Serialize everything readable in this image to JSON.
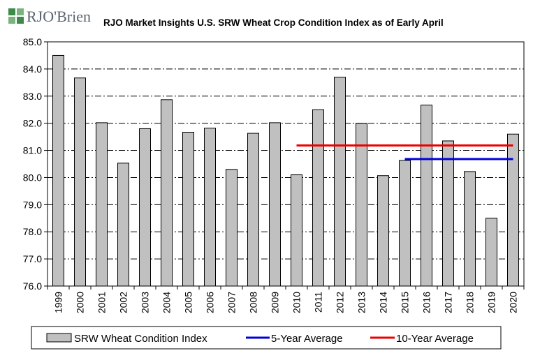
{
  "logo": {
    "text": "RJO'Brien",
    "mark_color": "#3d8a4a",
    "icon": "rjo-logo-icon"
  },
  "chart_data": {
    "type": "bar",
    "title": "RJO Market Insights U.S. SRW Wheat Crop Condition Index as of Early April",
    "xlabel": "",
    "ylabel": "",
    "ylim": [
      76.0,
      85.0
    ],
    "yticks": [
      "85.0",
      "84.0",
      "83.0",
      "82.0",
      "81.0",
      "80.0",
      "79.0",
      "78.0",
      "77.0",
      "76.0"
    ],
    "grid": "dash-dot horizontal",
    "legend_placement": "bottom",
    "categories": [
      "1999",
      "2000",
      "2001",
      "2002",
      "2003",
      "2004",
      "2005",
      "2006",
      "2007",
      "2008",
      "2009",
      "2010",
      "2011",
      "2012",
      "2013",
      "2014",
      "2015",
      "2016",
      "2017",
      "2018",
      "2019",
      "2020"
    ],
    "series": [
      {
        "name": "SRW Wheat Condition Index",
        "type": "bar",
        "color": "#c0c0c0",
        "values": [
          84.5,
          83.67,
          82.02,
          80.53,
          81.8,
          82.87,
          81.67,
          81.82,
          80.3,
          81.63,
          82.02,
          80.1,
          82.5,
          83.7,
          82.0,
          80.07,
          80.63,
          82.67,
          81.35,
          80.22,
          78.5,
          81.6
        ]
      },
      {
        "name": "5-Year Average",
        "type": "line",
        "color": "#0000dd",
        "x_start": "2015",
        "x_end": "2020",
        "value": 80.68
      },
      {
        "name": "10-Year Average",
        "type": "line",
        "color": "#ee0000",
        "x_start": "2010",
        "x_end": "2020",
        "value": 81.18
      }
    ]
  }
}
